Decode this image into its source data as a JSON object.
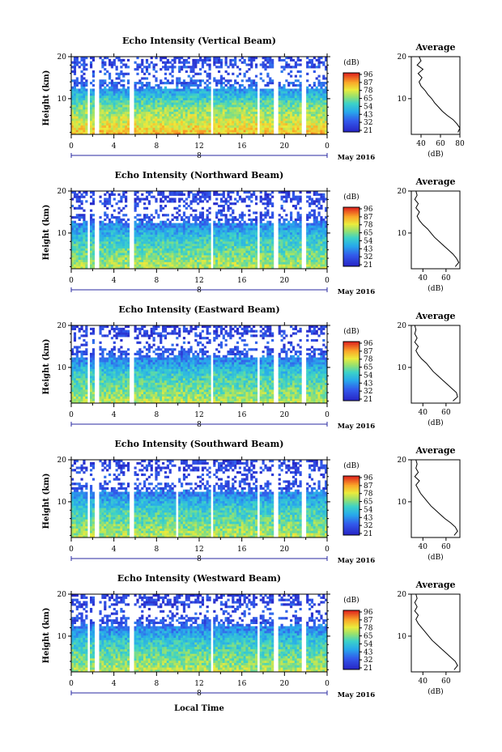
{
  "figure": {
    "x_axis_label": "Local Time",
    "month_label": "May 2016",
    "day_label": "8",
    "colorbar_unit": "(dB)",
    "colorbar_ticks": [
      "96",
      "87",
      "78",
      "65",
      "54",
      "43",
      "32",
      "21"
    ],
    "average_title": "Average",
    "average_xlabel": "(dB)"
  },
  "chart_data": [
    {
      "type": "heatmap",
      "title": "Echo Intensity (Vertical Beam)",
      "ylabel": "Height (km)",
      "xticks": [
        "0",
        "4",
        "8",
        "12",
        "16",
        "20",
        "0"
      ],
      "yticks": [
        "20",
        "10"
      ],
      "xlim": [
        0,
        24
      ],
      "ylim": [
        1.5,
        20
      ],
      "gaps_hours": [
        1.6,
        2.4,
        5.7,
        13.2,
        17.6,
        19.2,
        21.8
      ],
      "profile": {
        "title": "Average",
        "xticks": [
          "40",
          "60",
          "80"
        ],
        "xlim": [
          30,
          80
        ],
        "yticks": [
          "20",
          "10"
        ],
        "ylim": [
          1.5,
          20
        ],
        "height_km": [
          2,
          3,
          4,
          5,
          6,
          7,
          8,
          9,
          10,
          11,
          12,
          13,
          14,
          15,
          16,
          17,
          18,
          19,
          20
        ],
        "avg_db": [
          78,
          80,
          77,
          73,
          67,
          62,
          58,
          54,
          51,
          47,
          44,
          40,
          38,
          41,
          37,
          42,
          36,
          40,
          38
        ]
      }
    },
    {
      "type": "heatmap",
      "title": "Echo Intensity (Northward Beam)",
      "ylabel": "Height (km)",
      "xticks": [
        "0",
        "4",
        "8",
        "12",
        "16",
        "20",
        "0"
      ],
      "yticks": [
        "20",
        "10"
      ],
      "xlim": [
        0,
        24
      ],
      "ylim": [
        1.5,
        20
      ],
      "gaps_hours": [
        1.6,
        2.4,
        5.7,
        13.2,
        17.6,
        19.2,
        21.8
      ],
      "profile": {
        "title": "Average",
        "xticks": [
          "40",
          "60"
        ],
        "xlim": [
          30,
          72
        ],
        "yticks": [
          "20",
          "10"
        ],
        "ylim": [
          1.5,
          20
        ],
        "height_km": [
          2,
          3,
          4,
          5,
          6,
          7,
          8,
          9,
          10,
          11,
          12,
          13,
          14,
          15,
          16,
          17,
          18,
          19,
          20
        ],
        "avg_db": [
          68,
          71,
          69,
          66,
          62,
          58,
          54,
          50,
          47,
          44,
          40,
          37,
          35,
          37,
          34,
          36,
          33,
          35,
          34
        ]
      }
    },
    {
      "type": "heatmap",
      "title": "Echo Intensity (Eastward Beam)",
      "ylabel": "Height (km)",
      "xticks": [
        "0",
        "4",
        "8",
        "12",
        "16",
        "20",
        "0"
      ],
      "yticks": [
        "20",
        "10"
      ],
      "xlim": [
        0,
        24
      ],
      "ylim": [
        1.5,
        20
      ],
      "gaps_hours": [
        1.6,
        2.4,
        5.7,
        13.2,
        17.6,
        19.2,
        21.8
      ],
      "profile": {
        "title": "Average",
        "xticks": [
          "40",
          "60"
        ],
        "xlim": [
          30,
          72
        ],
        "yticks": [
          "20",
          "10"
        ],
        "ylim": [
          1.5,
          20
        ],
        "height_km": [
          2,
          3,
          4,
          5,
          6,
          7,
          8,
          9,
          10,
          11,
          12,
          13,
          14,
          15,
          16,
          17,
          18,
          19,
          20
        ],
        "avg_db": [
          66,
          70,
          69,
          65,
          61,
          57,
          53,
          49,
          46,
          43,
          39,
          36,
          34,
          36,
          33,
          35,
          33,
          34,
          33
        ]
      }
    },
    {
      "type": "heatmap",
      "title": "Echo Intensity (Southward Beam)",
      "ylabel": "Height (km)",
      "xticks": [
        "0",
        "4",
        "8",
        "12",
        "16",
        "20",
        "0"
      ],
      "yticks": [
        "20",
        "10"
      ],
      "xlim": [
        0,
        24
      ],
      "ylim": [
        1.5,
        20
      ],
      "gaps_hours": [
        1.6,
        2.4,
        5.7,
        9.9,
        13.2,
        17.6,
        19.2,
        21.8
      ],
      "profile": {
        "title": "Average",
        "xticks": [
          "40",
          "60"
        ],
        "xlim": [
          30,
          72
        ],
        "yticks": [
          "20",
          "10"
        ],
        "ylim": [
          1.5,
          20
        ],
        "height_km": [
          2,
          3,
          4,
          5,
          6,
          7,
          8,
          9,
          10,
          11,
          12,
          13,
          14,
          15,
          16,
          17,
          18,
          19,
          20
        ],
        "avg_db": [
          67,
          70,
          68,
          64,
          59,
          55,
          51,
          47,
          44,
          41,
          38,
          36,
          34,
          37,
          33,
          36,
          34,
          35,
          34
        ]
      }
    },
    {
      "type": "heatmap",
      "title": "Echo Intensity (Westward Beam)",
      "ylabel": "Height (km)",
      "xticks": [
        "0",
        "4",
        "8",
        "12",
        "16",
        "20",
        "0"
      ],
      "yticks": [
        "20",
        "10"
      ],
      "xlim": [
        0,
        24
      ],
      "ylim": [
        1.5,
        20
      ],
      "gaps_hours": [
        1.6,
        2.4,
        5.7,
        13.2,
        17.6,
        19.2,
        21.8
      ],
      "profile": {
        "title": "Average",
        "xticks": [
          "40",
          "60"
        ],
        "xlim": [
          30,
          72
        ],
        "yticks": [
          "20",
          "10"
        ],
        "ylim": [
          1.5,
          20
        ],
        "height_km": [
          2,
          3,
          4,
          5,
          6,
          7,
          8,
          9,
          10,
          11,
          12,
          13,
          14,
          15,
          16,
          17,
          18,
          19,
          20
        ],
        "avg_db": [
          67,
          70,
          68,
          64,
          60,
          56,
          52,
          48,
          45,
          42,
          39,
          36,
          34,
          36,
          33,
          35,
          33,
          35,
          34
        ]
      }
    }
  ]
}
